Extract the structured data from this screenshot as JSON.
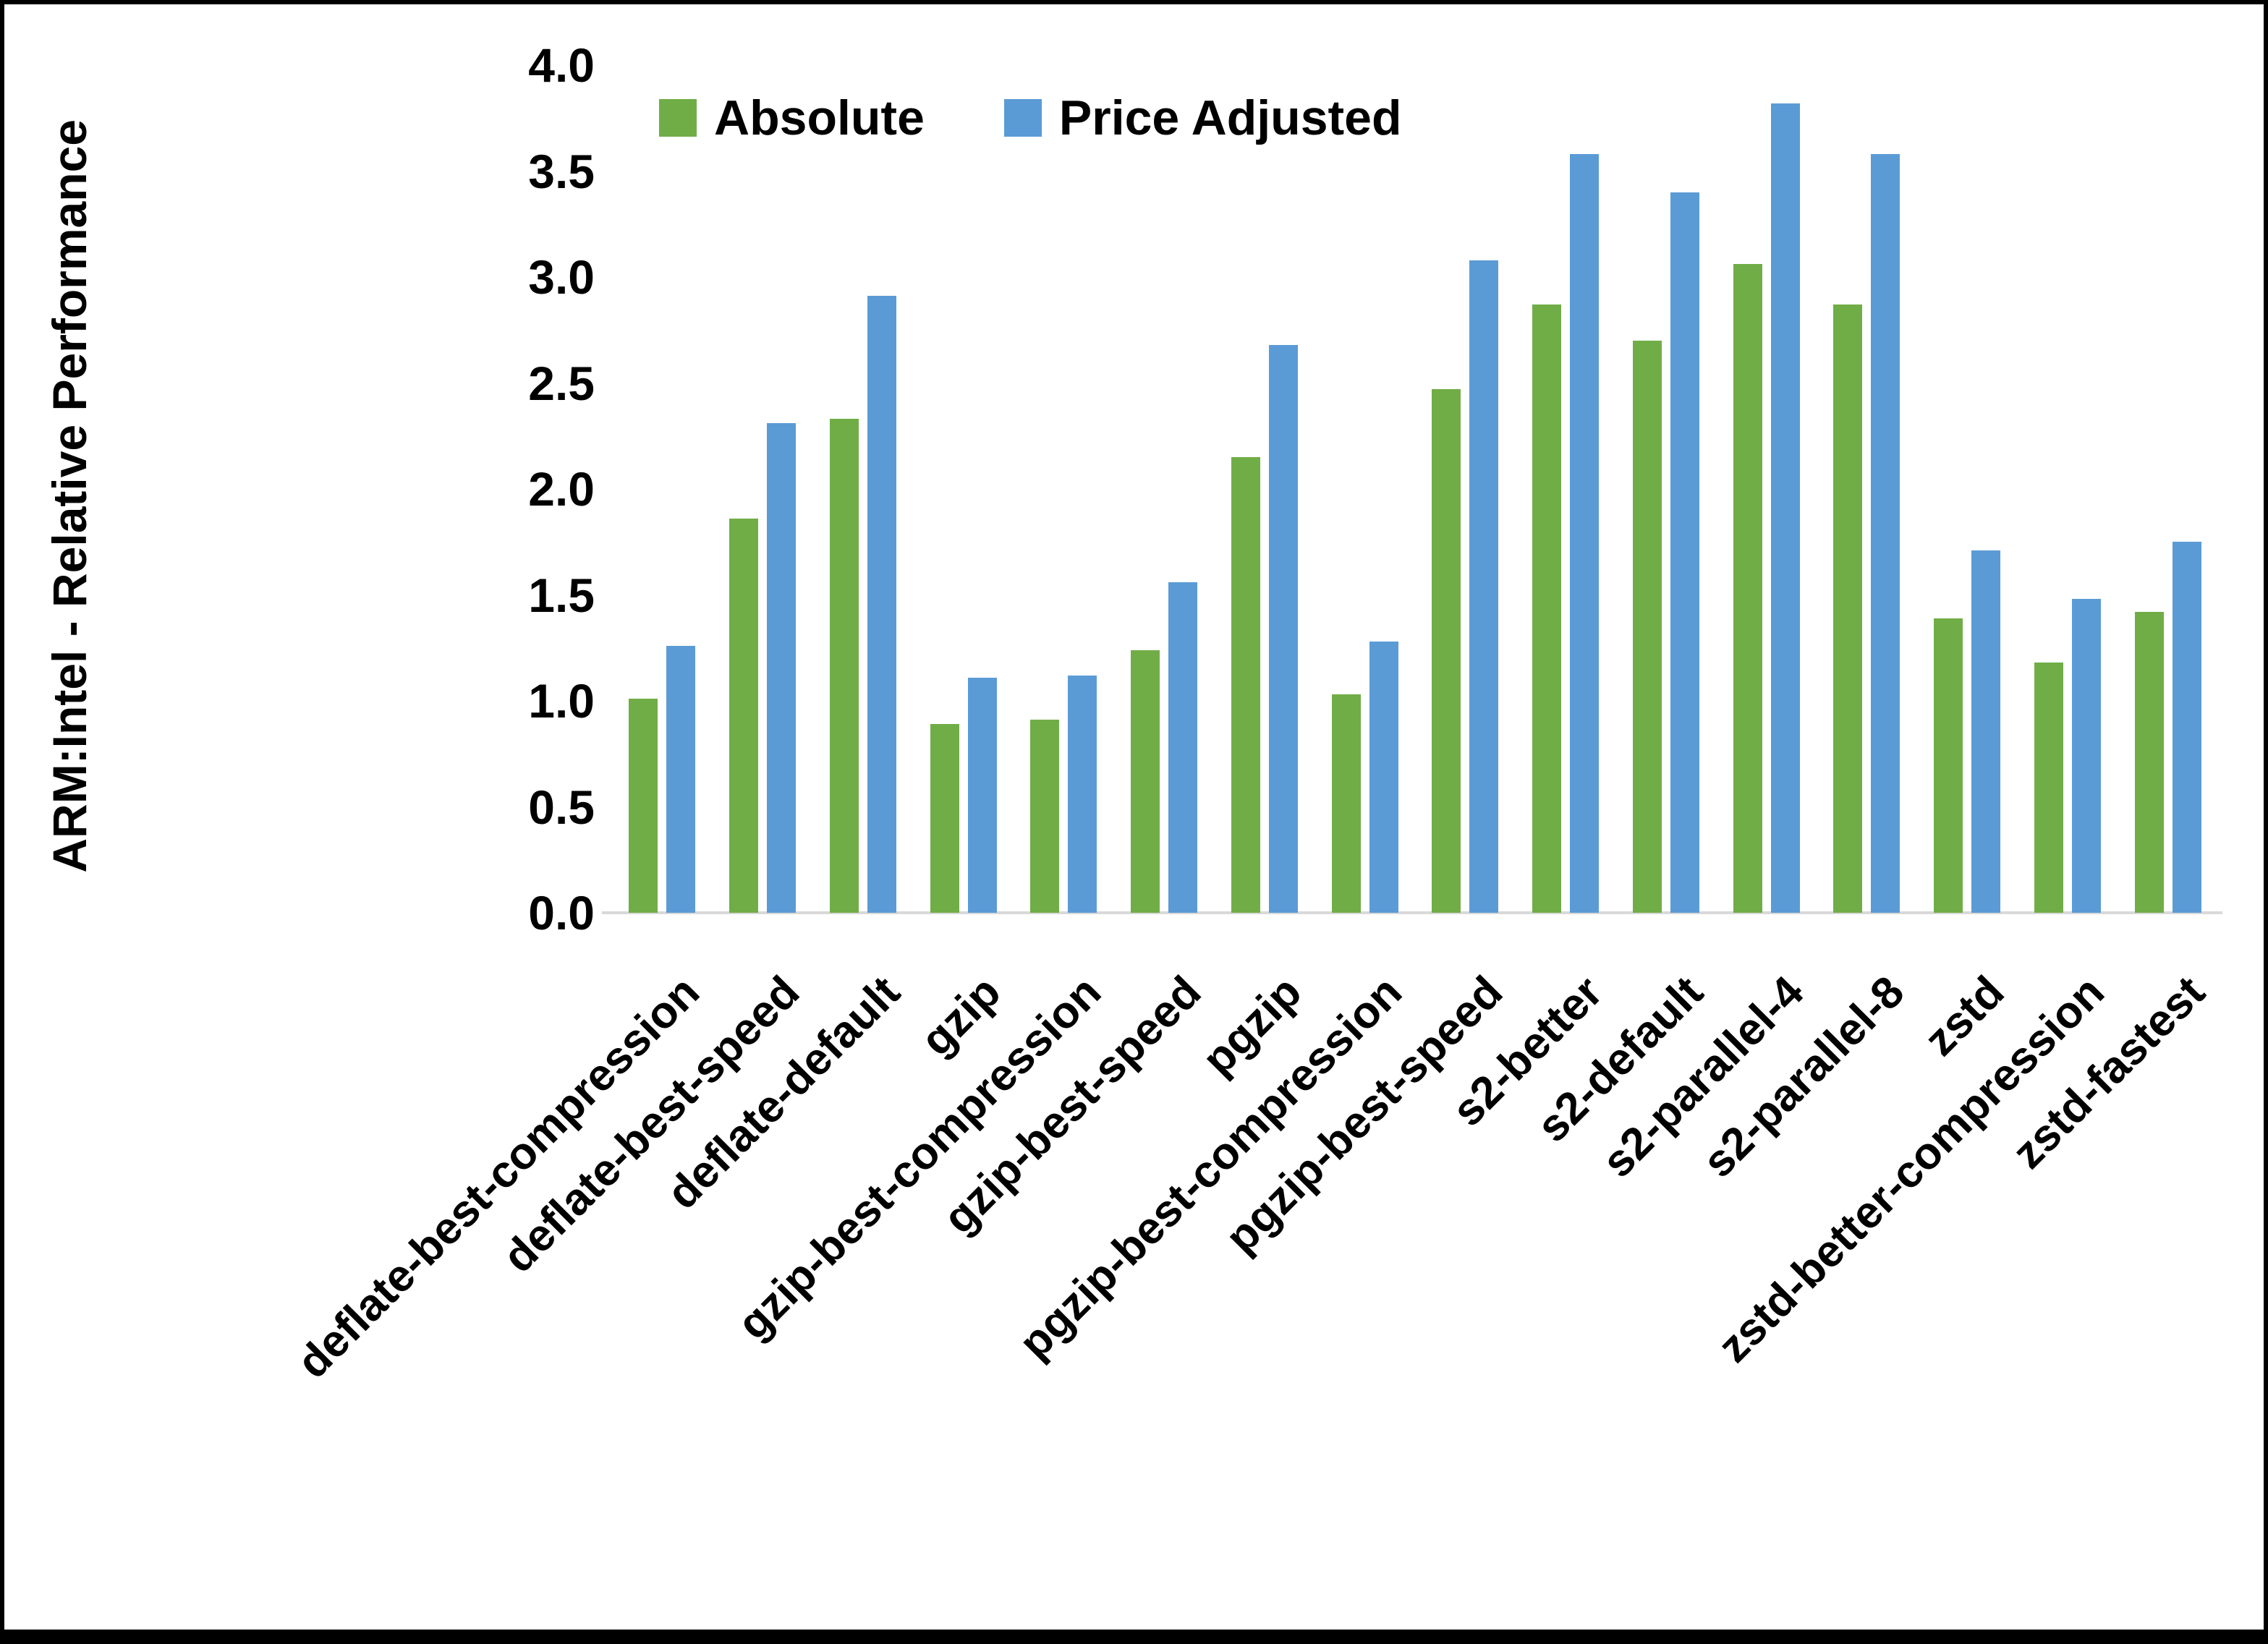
{
  "page": {
    "background": "#ffffff",
    "frame_color": "#000000",
    "axis_line_color": "#d9d9d9"
  },
  "chart_data": {
    "type": "bar",
    "title": "",
    "xlabel": "",
    "ylabel": "ARM:Intel - Relative Performance",
    "ylim": [
      0,
      4.0
    ],
    "ytick_step": 0.5,
    "yticks": [
      "0.0",
      "0.5",
      "1.0",
      "1.5",
      "2.0",
      "2.5",
      "3.0",
      "3.5",
      "4.0"
    ],
    "grid": false,
    "legend_position": "top-center",
    "categories": [
      "deflate-best-compression",
      "deflate-best-speed",
      "deflate-default",
      "gzip",
      "gzip-best-compression",
      "gzip-best-speed",
      "pgzip",
      "pgzip-best-compression",
      "pgzip-best-speed",
      "s2-better",
      "s2-default",
      "s2-parallel-4",
      "s2-parallel-8",
      "zstd",
      "zstd-better-compression",
      "zstd-fastest"
    ],
    "series": [
      {
        "name": "Absolute",
        "color": "#70AD47",
        "values": [
          1.01,
          1.86,
          2.33,
          0.89,
          0.91,
          1.24,
          2.15,
          1.03,
          2.47,
          2.87,
          2.7,
          3.06,
          2.87,
          1.39,
          1.18,
          1.42
        ]
      },
      {
        "name": "Price Adjusted",
        "color": "#5B9BD5",
        "values": [
          1.26,
          2.31,
          2.91,
          1.11,
          1.12,
          1.56,
          2.68,
          1.28,
          3.08,
          3.58,
          3.4,
          3.82,
          3.58,
          1.71,
          1.48,
          1.75
        ]
      }
    ]
  }
}
